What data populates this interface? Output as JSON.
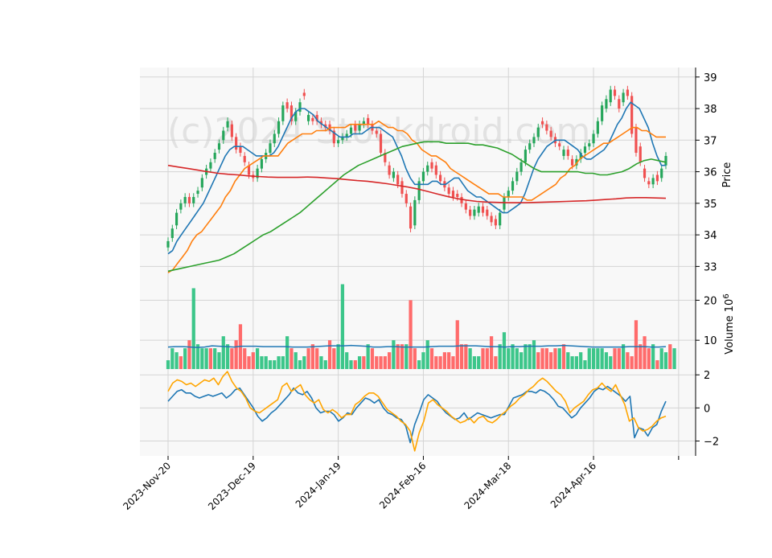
{
  "watermark": "(c)2024 Stockdroid.com",
  "chart_data": [
    {
      "type": "candlestick",
      "ylabel": "Price",
      "ylim": [
        32.5,
        39.3
      ],
      "yticks": [
        33,
        34,
        35,
        36,
        37,
        38,
        39
      ],
      "x_tick_labels": [
        "2023-Nov-20",
        "2023-Dec-19",
        "2024-Jan-19",
        "2024-Feb-16",
        "2024-Mar-18",
        "2024-Apr-16"
      ],
      "x_tick_index": [
        0,
        20,
        40,
        60,
        80,
        100
      ],
      "grid": true,
      "up_color": "#26a65b",
      "down_color": "#f05050",
      "close": [
        33.8,
        34.2,
        34.7,
        35.0,
        35.2,
        35.0,
        35.2,
        35.4,
        35.8,
        36.1,
        36.3,
        36.6,
        36.9,
        37.3,
        37.6,
        37.1,
        36.7,
        36.6,
        36.3,
        35.9,
        35.8,
        36.1,
        36.4,
        36.6,
        36.9,
        37.2,
        37.6,
        38.1,
        38.0,
        37.6,
        37.9,
        38.2,
        38.4,
        37.8,
        37.6,
        37.6,
        37.5,
        37.4,
        37.3,
        36.9,
        37.0,
        37.1,
        37.2,
        37.4,
        37.3,
        37.5,
        37.6,
        37.5,
        37.3,
        37.2,
        36.6,
        36.3,
        35.9,
        36.0,
        35.6,
        35.3,
        35.0,
        34.2,
        35.1,
        35.7,
        36.0,
        36.2,
        36.1,
        35.9,
        35.7,
        35.5,
        35.3,
        35.2,
        35.2,
        35.0,
        34.8,
        34.6,
        34.8,
        34.9,
        34.7,
        34.6,
        34.4,
        34.3,
        34.7,
        35.2,
        35.4,
        35.7,
        36.0,
        36.3,
        36.7,
        36.9,
        37.1,
        37.4,
        37.5,
        37.3,
        37.1,
        36.9,
        36.8,
        36.7,
        36.5,
        36.2,
        36.4,
        36.6,
        36.8,
        36.9,
        37.2,
        37.6,
        38.1,
        38.3,
        38.6,
        38.4,
        38.0,
        38.5,
        38.4,
        37.2,
        36.6,
        36.3,
        35.8,
        35.6,
        35.8,
        35.7,
        36.1,
        36.5
      ],
      "open": [
        33.6,
        33.9,
        34.3,
        34.8,
        35.0,
        35.2,
        35.0,
        35.3,
        35.5,
        35.9,
        36.1,
        36.4,
        36.7,
        37.0,
        37.4,
        37.5,
        37.1,
        36.8,
        36.5,
        36.2,
        35.9,
        35.8,
        36.1,
        36.4,
        36.6,
        36.9,
        37.2,
        37.6,
        38.2,
        38.1,
        37.6,
        37.9,
        38.5,
        37.6,
        37.7,
        37.8,
        37.6,
        37.5,
        37.5,
        37.3,
        36.9,
        37.0,
        37.1,
        37.2,
        37.5,
        37.3,
        37.5,
        37.7,
        37.5,
        37.3,
        37.2,
        36.6,
        36.2,
        35.8,
        35.9,
        35.7,
        35.3,
        34.9,
        34.3,
        35.1,
        35.7,
        36.0,
        36.3,
        36.2,
        35.9,
        35.7,
        35.5,
        35.4,
        35.3,
        35.2,
        35.0,
        34.8,
        34.6,
        34.7,
        34.9,
        34.8,
        34.6,
        34.5,
        34.3,
        34.8,
        35.2,
        35.4,
        35.7,
        36.0,
        36.3,
        36.7,
        36.9,
        37.1,
        37.6,
        37.5,
        37.3,
        37.1,
        36.9,
        36.5,
        36.7,
        36.4,
        36.2,
        36.4,
        36.6,
        36.8,
        36.9,
        37.2,
        37.6,
        38.0,
        38.2,
        38.6,
        38.3,
        38.2,
        38.6,
        38.4,
        37.4,
        36.8,
        36.1,
        35.7,
        35.6,
        35.9,
        35.8,
        36.2
      ],
      "ma_lines": [
        {
          "color": "#1f77b4",
          "values": [
            33.4,
            33.5,
            33.8,
            34.0,
            34.2,
            34.4,
            34.6,
            34.8,
            35.0,
            35.3,
            35.6,
            35.9,
            36.2,
            36.5,
            36.7,
            36.8,
            36.8,
            36.8,
            36.7,
            36.6,
            36.5,
            36.5,
            36.5,
            36.5,
            36.6,
            36.8,
            37.1,
            37.4,
            37.7,
            37.9,
            38.0,
            38.0,
            37.9,
            37.8,
            37.6,
            37.5,
            37.4,
            37.3,
            37.2,
            37.1,
            37.1,
            37.1,
            37.2,
            37.2,
            37.2,
            37.3,
            37.4,
            37.4,
            37.4,
            37.3,
            37.2,
            37.1,
            36.8,
            36.5,
            36.1,
            35.8,
            35.6,
            35.6,
            35.6,
            35.6,
            35.7,
            35.7,
            35.6,
            35.6,
            35.7,
            35.8,
            35.8,
            35.6,
            35.4,
            35.3,
            35.2,
            35.2,
            35.1,
            35.0,
            34.9,
            34.8,
            34.7,
            34.7,
            34.8,
            34.9,
            35.0,
            35.3,
            35.7,
            36.1,
            36.4,
            36.6,
            36.8,
            36.9,
            37.0,
            37.0,
            37.0,
            36.9,
            36.8,
            36.7,
            36.5,
            36.4,
            36.4,
            36.5,
            36.6,
            36.7,
            36.9,
            37.2,
            37.5,
            37.7,
            38.0,
            38.2,
            38.1,
            38.0,
            37.7,
            37.4,
            36.9,
            36.5,
            36.2,
            36.2
          ]
        },
        {
          "color": "#ff7f0e",
          "values": [
            32.8,
            32.9,
            33.1,
            33.3,
            33.5,
            33.8,
            34.0,
            34.1,
            34.3,
            34.5,
            34.7,
            34.9,
            35.2,
            35.4,
            35.7,
            35.9,
            36.1,
            36.2,
            36.3,
            36.4,
            36.5,
            36.5,
            36.5,
            36.5,
            36.7,
            36.9,
            37.0,
            37.1,
            37.2,
            37.2,
            37.2,
            37.3,
            37.3,
            37.3,
            37.4,
            37.4,
            37.4,
            37.4,
            37.5,
            37.5,
            37.5,
            37.5,
            37.5,
            37.5,
            37.6,
            37.5,
            37.4,
            37.4,
            37.3,
            37.3,
            37.2,
            37.0,
            36.9,
            36.7,
            36.6,
            36.5,
            36.5,
            36.4,
            36.3,
            36.1,
            36.0,
            35.9,
            35.8,
            35.7,
            35.6,
            35.5,
            35.4,
            35.3,
            35.3,
            35.3,
            35.2,
            35.2,
            35.2,
            35.2,
            35.2,
            35.1,
            35.1,
            35.2,
            35.3,
            35.4,
            35.5,
            35.6,
            35.8,
            35.9,
            36.1,
            36.2,
            36.4,
            36.5,
            36.6,
            36.7,
            36.8,
            36.9,
            36.9,
            37.0,
            37.1,
            37.2,
            37.3,
            37.4,
            37.4,
            37.3,
            37.3,
            37.2,
            37.1,
            37.1,
            37.1
          ]
        },
        {
          "color": "#2ca02c",
          "values": [
            32.85,
            32.9,
            32.95,
            33.0,
            33.05,
            33.1,
            33.15,
            33.2,
            33.3,
            33.4,
            33.55,
            33.7,
            33.85,
            34.0,
            34.1,
            34.25,
            34.4,
            34.55,
            34.7,
            34.9,
            35.1,
            35.3,
            35.5,
            35.7,
            35.9,
            36.05,
            36.2,
            36.3,
            36.4,
            36.5,
            36.6,
            36.7,
            36.8,
            36.85,
            36.9,
            36.95,
            36.95,
            36.95,
            36.9,
            36.9,
            36.9,
            36.9,
            36.85,
            36.85,
            36.8,
            36.75,
            36.65,
            36.55,
            36.4,
            36.25,
            36.1,
            36.0,
            36.0,
            36.0,
            36.0,
            36.0,
            36.0,
            35.95,
            35.95,
            35.9,
            35.9,
            35.95,
            36.0,
            36.1,
            36.25,
            36.35,
            36.4,
            36.35,
            36.3
          ]
        },
        {
          "color": "#d62728",
          "values": [
            36.2,
            36.15,
            36.1,
            36.05,
            36.0,
            35.95,
            35.92,
            35.9,
            35.87,
            35.85,
            35.83,
            35.82,
            35.82,
            35.82,
            35.83,
            35.82,
            35.8,
            35.78,
            35.75,
            35.72,
            35.7,
            35.66,
            35.62,
            35.57,
            35.52,
            35.46,
            35.38,
            35.3,
            35.22,
            35.15,
            35.1,
            35.06,
            35.04,
            35.03,
            35.02,
            35.02,
            35.02,
            35.03,
            35.04,
            35.05,
            35.06,
            35.07,
            35.08,
            35.1,
            35.12,
            35.14,
            35.17,
            35.18,
            35.18,
            35.17,
            35.16
          ]
        }
      ]
    },
    {
      "type": "bar",
      "ylabel": "Volume  10",
      "ylabel_exponent": "6",
      "ylim": [
        2.8,
        24.5
      ],
      "yticks": [
        10,
        20
      ],
      "up_color": "#3cc68a",
      "down_color": "#ff6b6b",
      "values": [
        5,
        8,
        7,
        6,
        8,
        10,
        23,
        9,
        8,
        8,
        8,
        8,
        7,
        11,
        9,
        8,
        10,
        14,
        8,
        6,
        7,
        8,
        6,
        6,
        5,
        5,
        6,
        6,
        11,
        8,
        7,
        5,
        6,
        8,
        9,
        8,
        6,
        5,
        10,
        8,
        9,
        24,
        7,
        5,
        5,
        6,
        6,
        9,
        8,
        6,
        6,
        6,
        7,
        10,
        9,
        9,
        9,
        20,
        8,
        5,
        7,
        10,
        8,
        6,
        6,
        7,
        7,
        6,
        15,
        9,
        9,
        8,
        6,
        6,
        8,
        8,
        11,
        6,
        9,
        12,
        8,
        9,
        8,
        7,
        9,
        9,
        10,
        7,
        8,
        8,
        7,
        8,
        8,
        9,
        7,
        6,
        6,
        7,
        5,
        8,
        8,
        8,
        8,
        7,
        6,
        8,
        8,
        9,
        7,
        6,
        15,
        9,
        11,
        8,
        9,
        5,
        8,
        7,
        9,
        8
      ],
      "up": [
        1,
        1,
        1,
        0,
        1,
        0,
        1,
        1,
        1,
        1,
        0,
        1,
        1,
        1,
        1,
        0,
        0,
        0,
        0,
        0,
        0,
        1,
        1,
        1,
        1,
        1,
        1,
        1,
        1,
        0,
        1,
        1,
        1,
        0,
        0,
        0,
        1,
        1,
        0,
        0,
        1,
        1,
        1,
        1,
        0,
        1,
        0,
        1,
        0,
        0,
        0,
        0,
        0,
        1,
        0,
        0,
        1,
        0,
        0,
        1,
        1,
        1,
        0,
        0,
        0,
        0,
        0,
        0,
        0,
        0,
        0,
        1,
        1,
        1,
        0,
        0,
        0,
        0,
        1,
        1,
        1,
        1,
        1,
        1,
        1,
        1,
        1,
        0,
        0,
        0,
        0,
        0,
        1,
        0,
        1,
        1,
        1,
        1,
        1,
        1,
        1,
        1,
        1,
        1,
        1,
        0,
        0,
        1,
        0,
        0,
        0,
        0,
        0,
        0,
        1,
        0,
        1,
        1,
        0,
        1
      ],
      "avg_line": {
        "color": "#1f77b4",
        "values": [
          8.3,
          8.4,
          8.4,
          8.3,
          8.2,
          8.3,
          8.6,
          8.5,
          8.4,
          8.3,
          8.5,
          8.5,
          8.5,
          8.4,
          8.4,
          8.4,
          8.4,
          8.3,
          8.3,
          8.3,
          8.4,
          8.5,
          8.6,
          8.6,
          8.6,
          8.7,
          8.6,
          8.5,
          8.3,
          8.3,
          8.4,
          8.4,
          8.3,
          8.3,
          8.3,
          8.3,
          8.4,
          8.5,
          8.5,
          8.5,
          8.6,
          8.6,
          8.6,
          8.5,
          8.4,
          8.4,
          8.3,
          8.4,
          8.4,
          8.5,
          8.5,
          8.5,
          8.6,
          8.6,
          8.7,
          8.6,
          8.5,
          8.4,
          8.3,
          8.3,
          8.3,
          8.3,
          8.3,
          8.4,
          8.4,
          8.4,
          8.3,
          8.3,
          8.4
        ]
      }
    },
    {
      "type": "line",
      "ylim": [
        -2.9,
        2.35
      ],
      "yticks": [
        -2,
        0,
        2
      ],
      "series": [
        {
          "color": "#1f77b4",
          "values": [
            0.4,
            0.7,
            1.0,
            1.1,
            0.9,
            0.9,
            0.7,
            0.6,
            0.7,
            0.8,
            0.7,
            0.8,
            0.9,
            0.6,
            0.8,
            1.1,
            1.2,
            0.8,
            0.4,
            0.0,
            -0.5,
            -0.8,
            -0.6,
            -0.3,
            -0.1,
            0.2,
            0.5,
            0.8,
            1.2,
            0.9,
            0.8,
            1.0,
            0.6,
            0.0,
            -0.3,
            -0.2,
            -0.2,
            -0.4,
            -0.8,
            -0.6,
            -0.3,
            -0.4,
            0.0,
            0.3,
            0.6,
            0.5,
            0.3,
            0.5,
            0.0,
            -0.3,
            -0.4,
            -0.6,
            -0.7,
            -1.1,
            -2.1,
            -1.0,
            -0.3,
            0.5,
            0.8,
            0.6,
            0.4,
            0.0,
            -0.3,
            -0.5,
            -0.7,
            -0.6,
            -0.3,
            -0.7,
            -0.5,
            -0.3,
            -0.4,
            -0.5,
            -0.6,
            -0.5,
            -0.4,
            -0.4,
            0.1,
            0.6,
            0.7,
            0.8,
            1.0,
            1.0,
            0.9,
            1.1,
            1.0,
            0.8,
            0.5,
            0.1,
            0.0,
            -0.3,
            -0.6,
            -0.4,
            0.0,
            0.3,
            0.6,
            1.0,
            1.2,
            1.1,
            1.3,
            1.1,
            0.9,
            0.7,
            0.4,
            0.7,
            -1.8,
            -1.2,
            -1.3,
            -1.7,
            -1.2,
            -1.0,
            -0.2,
            0.4
          ]
        },
        {
          "color": "#ffa500",
          "values": [
            1.0,
            1.5,
            1.7,
            1.6,
            1.4,
            1.5,
            1.3,
            1.5,
            1.7,
            1.6,
            1.8,
            1.4,
            1.9,
            2.2,
            1.6,
            1.2,
            1.0,
            0.6,
            0.0,
            -0.2,
            -0.3,
            -0.1,
            0.1,
            0.3,
            0.5,
            1.3,
            1.5,
            1.0,
            1.2,
            1.4,
            0.8,
            0.5,
            0.3,
            0.5,
            -0.1,
            -0.3,
            -0.1,
            -0.3,
            -0.6,
            -0.4,
            -0.4,
            0.2,
            0.4,
            0.7,
            0.9,
            0.9,
            0.7,
            0.3,
            -0.1,
            -0.3,
            -0.5,
            -0.8,
            -1.0,
            -1.4,
            -2.6,
            -1.5,
            -0.8,
            0.3,
            0.5,
            0.2,
            0.0,
            -0.2,
            -0.5,
            -0.7,
            -0.9,
            -0.8,
            -0.6,
            -0.9,
            -0.6,
            -0.5,
            -0.8,
            -0.9,
            -0.7,
            -0.4,
            -0.2,
            0.1,
            0.3,
            0.6,
            0.8,
            1.1,
            1.3,
            1.6,
            1.8,
            1.6,
            1.3,
            1.0,
            0.8,
            0.4,
            -0.3,
            0.0,
            0.2,
            0.4,
            0.8,
            1.1,
            1.2,
            1.5,
            1.2,
            1.0,
            1.4,
            0.8,
            0.2,
            -0.8,
            -0.6,
            -1.2,
            -1.4,
            -1.3,
            -1.1,
            -0.8,
            -0.6,
            -0.5
          ]
        }
      ]
    }
  ]
}
